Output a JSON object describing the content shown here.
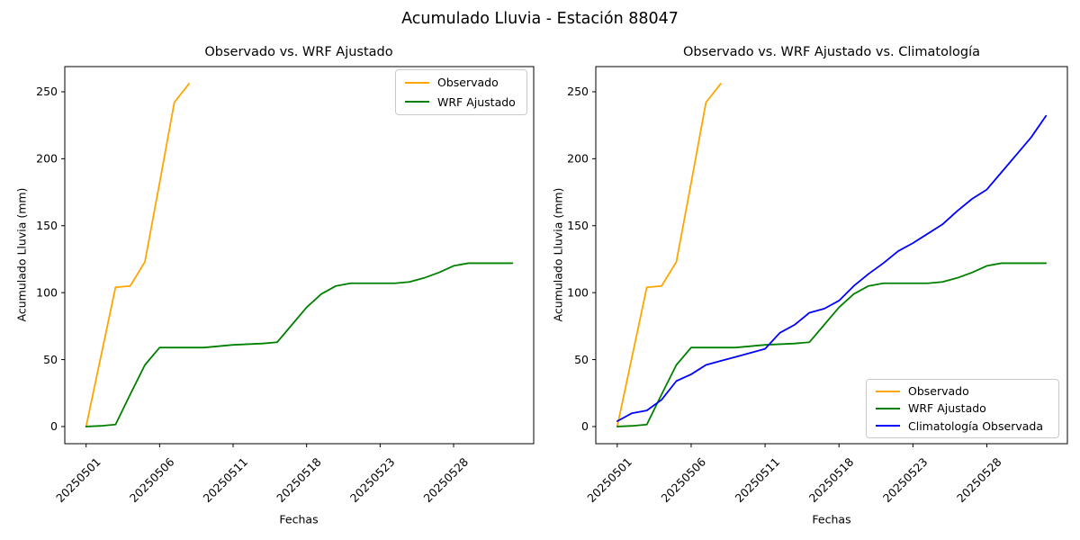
{
  "figure": {
    "suptitle": "Acumulado Lluvia - Estación 88047",
    "background_color": "#ffffff",
    "text_color": "#000000"
  },
  "chart_data": [
    {
      "type": "line",
      "title": "Observado vs. WRF Ajustado",
      "xlabel": "Fechas",
      "ylabel": "Acumulado Lluvia (mm)",
      "x_tick_positions": [
        0,
        5,
        10,
        15,
        20,
        25
      ],
      "x_tick_labels": [
        "20250501",
        "20250506",
        "20250511",
        "20250518",
        "20250523",
        "20250528"
      ],
      "x_tick_rotation": 45,
      "y_ticks": [
        0,
        50,
        100,
        150,
        200,
        250
      ],
      "xlim": [
        -1.45,
        30.45
      ],
      "ylim": [
        -12.8,
        268.8
      ],
      "grid": false,
      "legend_position": "upper-right",
      "series": [
        {
          "name": "Observado",
          "color": "#FFA500",
          "x": [
            0,
            1,
            2,
            3,
            4,
            5,
            6,
            7
          ],
          "values": [
            0,
            52,
            104,
            105,
            123,
            182,
            242,
            256
          ]
        },
        {
          "name": "WRF Ajustado",
          "color": "#008000",
          "x": [
            0,
            1,
            2,
            3,
            4,
            5,
            6,
            7,
            8,
            9,
            10,
            11,
            12,
            13,
            14,
            15,
            16,
            17,
            18,
            19,
            20,
            21,
            22,
            23,
            24,
            25,
            26,
            27,
            28,
            29
          ],
          "values": [
            0,
            0.5,
            1.5,
            24,
            46,
            59,
            59,
            59,
            59,
            60,
            61,
            61.5,
            62,
            63,
            76,
            89,
            99,
            105,
            107,
            107,
            107,
            107,
            108,
            111,
            115,
            120,
            122,
            122,
            122,
            122
          ]
        }
      ]
    },
    {
      "type": "line",
      "title": "Observado vs. WRF Ajustado vs. Climatología",
      "xlabel": "Fechas",
      "ylabel": "Acumulado Lluvia (mm)",
      "x_tick_positions": [
        0,
        5,
        10,
        15,
        20,
        25
      ],
      "x_tick_labels": [
        "20250501",
        "20250506",
        "20250511",
        "20250518",
        "20250523",
        "20250528"
      ],
      "x_tick_rotation": 45,
      "y_ticks": [
        0,
        50,
        100,
        150,
        200,
        250
      ],
      "xlim": [
        -1.45,
        30.45
      ],
      "ylim": [
        -12.8,
        268.8
      ],
      "grid": false,
      "legend_position": "lower-right",
      "series": [
        {
          "name": "Observado",
          "color": "#FFA500",
          "x": [
            0,
            1,
            2,
            3,
            4,
            5,
            6,
            7
          ],
          "values": [
            0,
            52,
            104,
            105,
            123,
            182,
            242,
            256
          ]
        },
        {
          "name": "WRF Ajustado",
          "color": "#008000",
          "x": [
            0,
            1,
            2,
            3,
            4,
            5,
            6,
            7,
            8,
            9,
            10,
            11,
            12,
            13,
            14,
            15,
            16,
            17,
            18,
            19,
            20,
            21,
            22,
            23,
            24,
            25,
            26,
            27,
            28,
            29
          ],
          "values": [
            0,
            0.5,
            1.5,
            24,
            46,
            59,
            59,
            59,
            59,
            60,
            61,
            61.5,
            62,
            63,
            76,
            89,
            99,
            105,
            107,
            107,
            107,
            107,
            108,
            111,
            115,
            120,
            122,
            122,
            122,
            122
          ]
        },
        {
          "name": "Climatología Observada",
          "color": "#0000FF",
          "x": [
            0,
            1,
            2,
            3,
            4,
            5,
            6,
            7,
            8,
            9,
            10,
            11,
            12,
            13,
            14,
            15,
            16,
            17,
            18,
            19,
            20,
            21,
            22,
            23,
            24,
            25,
            26,
            27,
            28,
            29
          ],
          "values": [
            4,
            10,
            12,
            20,
            34,
            39,
            46,
            49,
            52,
            55,
            58,
            70,
            76,
            85,
            88,
            94,
            105,
            114,
            122,
            131,
            137,
            144,
            151,
            161,
            170,
            177,
            190,
            203,
            216,
            232
          ]
        }
      ]
    }
  ]
}
